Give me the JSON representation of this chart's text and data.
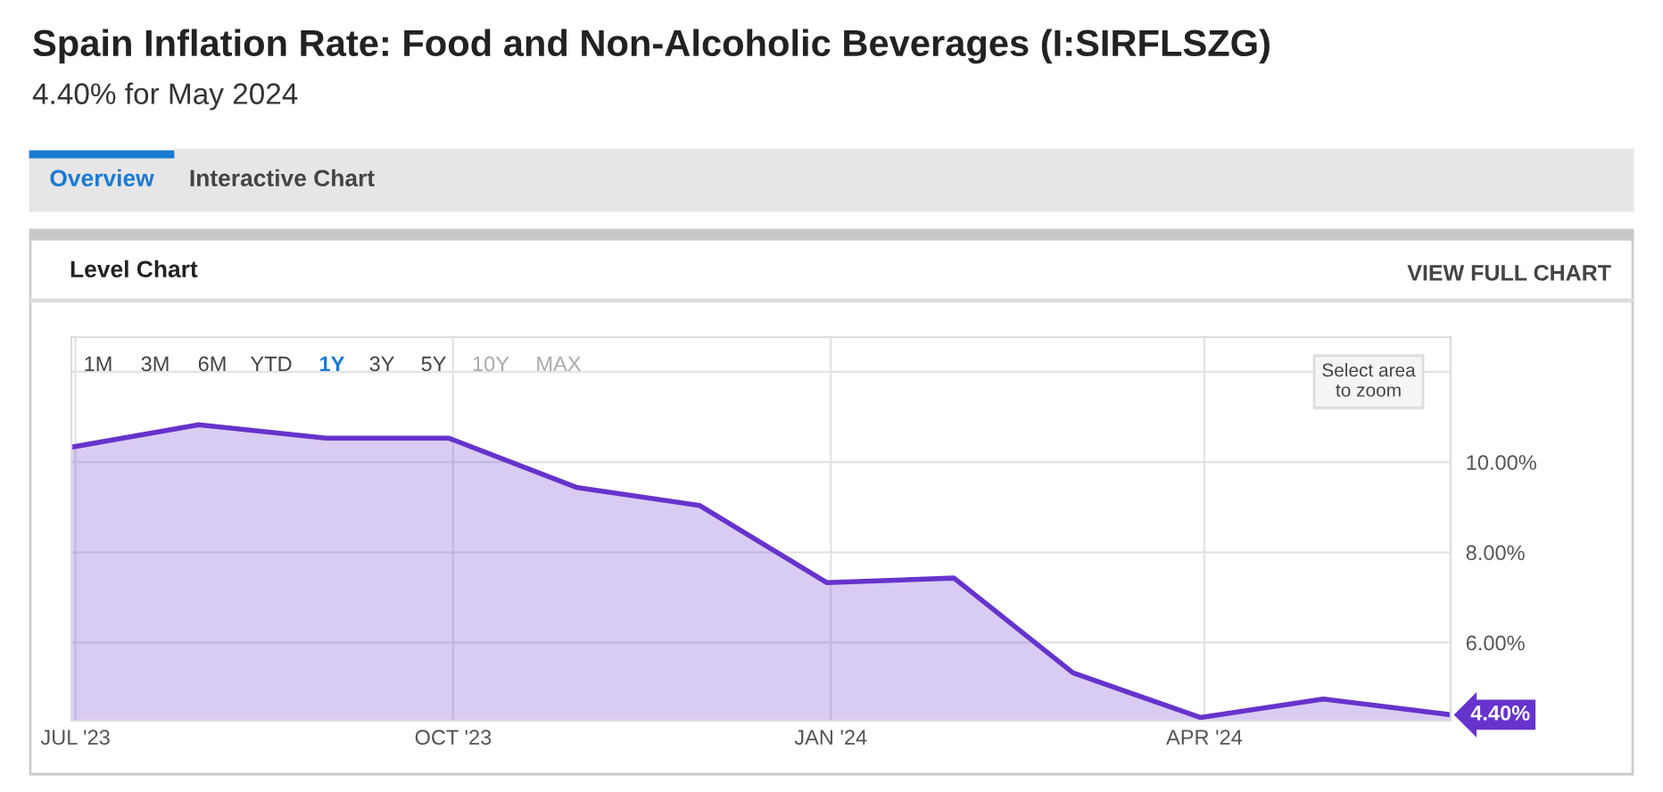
{
  "chart_data": {
    "type": "area",
    "title": "Spain Inflation Rate: Food and Non-Alcoholic Beverages (I:SIRFLSZG)",
    "subtitle": "4.40% for May 2024",
    "x": [
      "2023-06-30",
      "2023-07-31",
      "2023-08-31",
      "2023-09-30",
      "2023-10-31",
      "2023-11-30",
      "2023-12-31",
      "2024-01-31",
      "2024-02-29",
      "2024-03-31",
      "2024-04-30",
      "2024-05-31"
    ],
    "series": [
      {
        "color": "#6633cc",
        "values": [
          10.33,
          10.83,
          10.53,
          10.53,
          9.44,
          9.04,
          7.33,
          7.43,
          5.33,
          4.34,
          4.75,
          4.4
        ]
      }
    ],
    "xlim": [
      "2023-06-30",
      "2024-05-31"
    ],
    "xticks": [
      {
        "value": "2023-07-01",
        "label": "JUL '23"
      },
      {
        "value": "2023-10-01",
        "label": "OCT '23"
      },
      {
        "value": "2024-01-01",
        "label": "JAN '24"
      },
      {
        "value": "2024-04-01",
        "label": "APR '24"
      }
    ],
    "ylim": [
      4.27,
      12.77
    ],
    "yticks": [
      {
        "value": 6,
        "label": "6.00%"
      },
      {
        "value": 8,
        "label": "8.00%"
      },
      {
        "value": 10,
        "label": "10.00%"
      },
      {
        "value": 12,
        "label": null
      }
    ],
    "grid": true,
    "annotations": [
      "Overview",
      "Interactive Chart",
      "Level Chart",
      "VIEW FULL CHART",
      "1M",
      "3M",
      "6M",
      "YTD",
      "1Y",
      "3Y",
      "5Y",
      "10Y",
      "MAX",
      "Select area\nto zoom",
      {
        "text": "4.40%",
        "x": "2024-05-31",
        "y": 4.4
      }
    ]
  }
}
